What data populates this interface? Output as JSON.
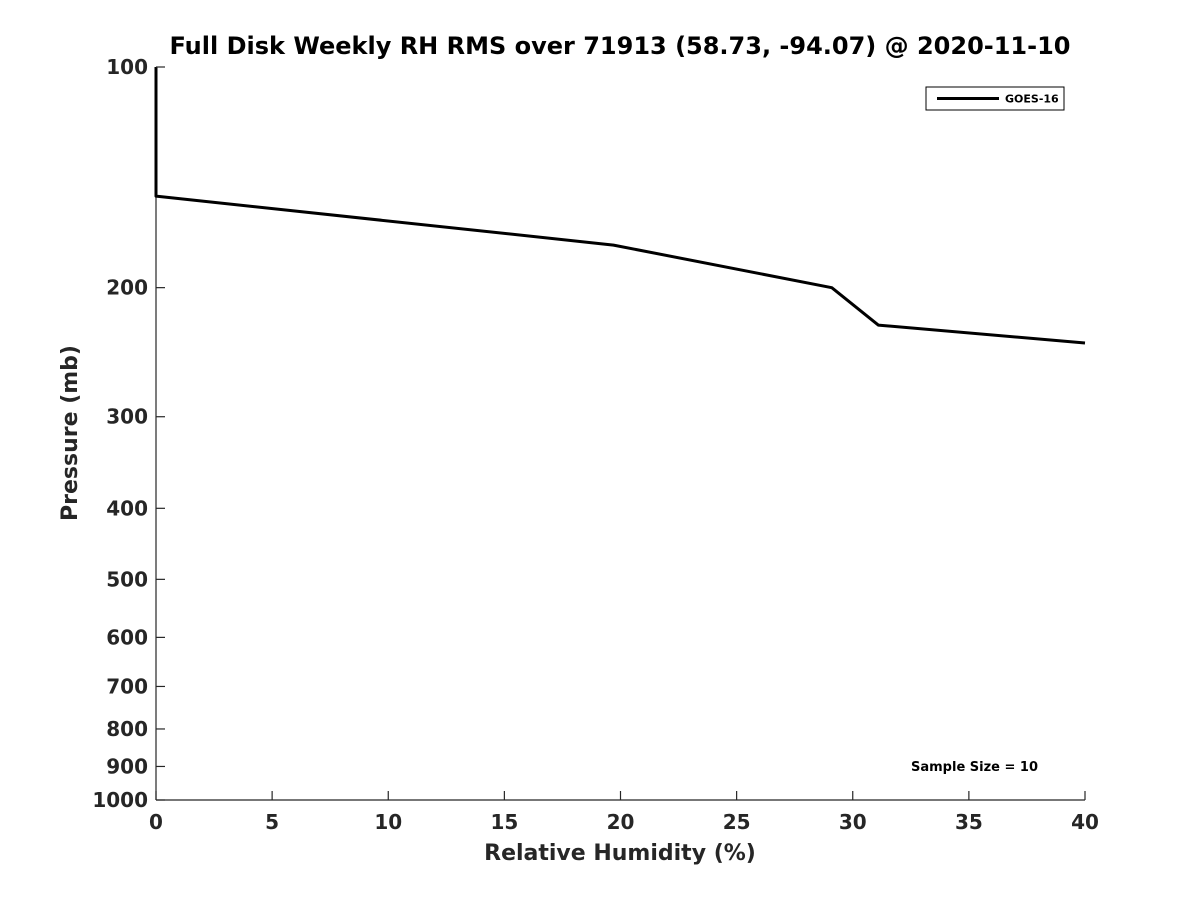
{
  "chart_data": {
    "type": "line",
    "title": "Full Disk Weekly RH RMS over 71913 (58.73, -94.07) @ 2020-11-10",
    "xlabel": "Relative Humidity (%)",
    "ylabel": "Pressure (mb)",
    "xlim": [
      0,
      40
    ],
    "ylim": [
      1000,
      100
    ],
    "y_scale": "log",
    "y_reversed": true,
    "grid": false,
    "legend_position": "top-right",
    "x_ticks": [
      0,
      5,
      10,
      15,
      20,
      25,
      30,
      35,
      40
    ],
    "y_ticks": [
      100,
      200,
      300,
      400,
      500,
      600,
      700,
      800,
      900,
      1000
    ],
    "series": [
      {
        "name": "GOES-16",
        "color": "#000000",
        "x": [
          0,
          0,
          19.7,
          29.1,
          31.1,
          40
        ],
        "y": [
          100,
          150,
          175,
          200,
          225,
          238
        ]
      }
    ],
    "annotations": [
      {
        "text": "Sample Size = 10"
      }
    ]
  }
}
